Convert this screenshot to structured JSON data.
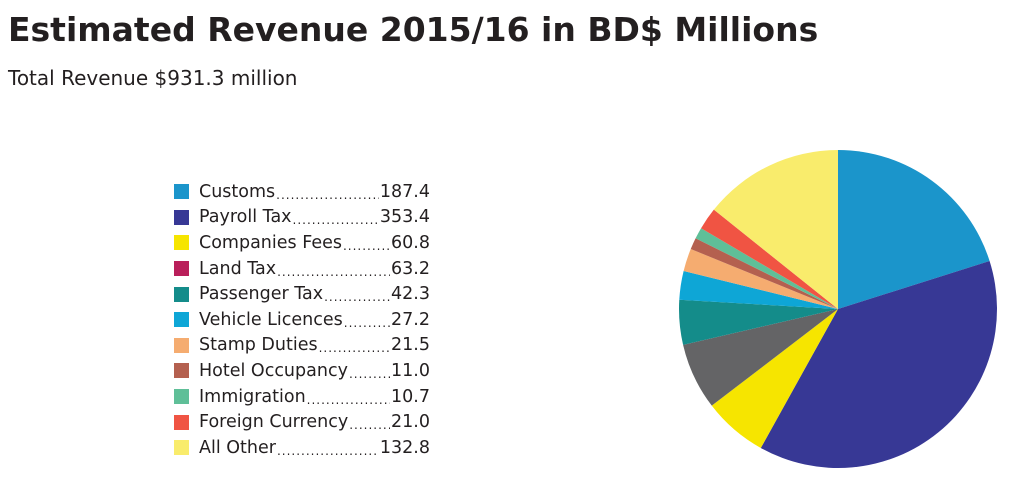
{
  "chart_data": {
    "type": "pie",
    "title": "Estimated Revenue 2015/16 in BD$ Millions",
    "subtitle": "Total Revenue $931.3 million",
    "total": 931.3,
    "units": "BD$ Millions",
    "start_angle": "12 o'clock",
    "direction": "clockwise",
    "legend_position": "left",
    "slices": [
      {
        "label": "Customs",
        "value": 187.4,
        "value_text": "187.4",
        "legend_color": "#1b95cb",
        "slice_color": "#1b95cb"
      },
      {
        "label": "Payroll Tax",
        "value": 353.4,
        "value_text": "353.4",
        "legend_color": "#373895",
        "slice_color": "#373895"
      },
      {
        "label": "Companies Fees",
        "value": 60.8,
        "value_text": "60.8",
        "legend_color": "#f6e500",
        "slice_color": "#f6e500"
      },
      {
        "label": "Land Tax",
        "value": 63.2,
        "value_text": "63.2",
        "legend_color": "#b91f5a",
        "slice_color": "#646466"
      },
      {
        "label": "Passenger Tax",
        "value": 42.3,
        "value_text": "42.3",
        "legend_color": "#148c8a",
        "slice_color": "#148c8a"
      },
      {
        "label": "Vehicle Licences",
        "value": 27.2,
        "value_text": "27.2",
        "legend_color": "#0ea6d6",
        "slice_color": "#0ea6d6"
      },
      {
        "label": "Stamp Duties",
        "value": 21.5,
        "value_text": "21.5",
        "legend_color": "#f5ac70",
        "slice_color": "#f5ac70"
      },
      {
        "label": "Hotel Occupancy",
        "value": 11.0,
        "value_text": "11.0",
        "legend_color": "#b4604f",
        "slice_color": "#b4604f"
      },
      {
        "label": "Immigration",
        "value": 10.7,
        "value_text": "10.7",
        "legend_color": "#5fbf98",
        "slice_color": "#5fbf98"
      },
      {
        "label": "Foreign Currency",
        "value": 21.0,
        "value_text": "21.0",
        "legend_color": "#f05443",
        "slice_color": "#f05443"
      },
      {
        "label": "All Other",
        "value": 132.8,
        "value_text": "132.8",
        "legend_color": "#f9ec6c",
        "slice_color": "#f9ec6c"
      }
    ]
  }
}
